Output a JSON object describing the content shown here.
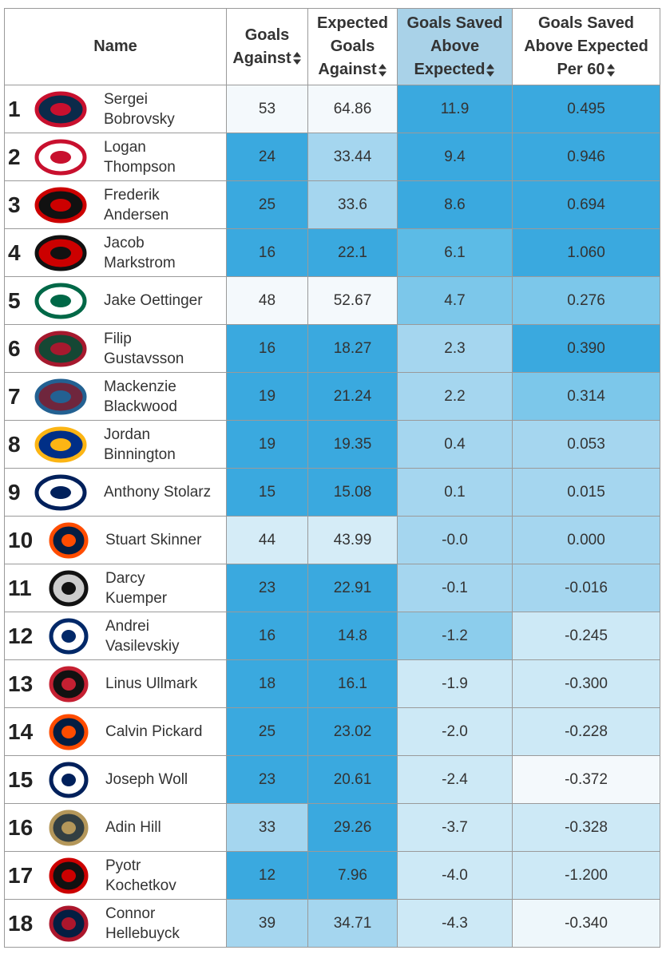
{
  "table": {
    "columns": [
      "Name",
      "Goals Against",
      "Expected Goals Against",
      "Goals Saved Above Expected",
      "Goals Saved Above Expected Per 60"
    ],
    "sorted_column": 3,
    "rows": [
      {
        "rank": "1",
        "name": [
          "Sergei",
          "Bobrovsky"
        ],
        "cells": [
          "53",
          "64.86",
          "11.9",
          "0.495"
        ],
        "colors": [
          "#f4f9fc",
          "#f4f9fc",
          "#3aa9df",
          "#3aa9df"
        ]
      },
      {
        "rank": "2",
        "name": [
          "Logan",
          "Thompson"
        ],
        "cells": [
          "24",
          "33.44",
          "9.4",
          "0.946"
        ],
        "colors": [
          "#3aa9df",
          "#a5d6ef",
          "#3aa9df",
          "#3aa9df"
        ]
      },
      {
        "rank": "3",
        "name": [
          "Frederik",
          "Andersen"
        ],
        "cells": [
          "25",
          "33.6",
          "8.6",
          "0.694"
        ],
        "colors": [
          "#3aa9df",
          "#a5d6ef",
          "#3aa9df",
          "#3aa9df"
        ]
      },
      {
        "rank": "4",
        "name": [
          "Jacob",
          "Markstrom"
        ],
        "cells": [
          "16",
          "22.1",
          "6.1",
          "1.060"
        ],
        "colors": [
          "#3aa9df",
          "#3aa9df",
          "#5cbbe6",
          "#3aa9df"
        ]
      },
      {
        "rank": "5",
        "name": [
          "Jake Oettinger"
        ],
        "cells": [
          "48",
          "52.67",
          "4.7",
          "0.276"
        ],
        "colors": [
          "#f4f9fc",
          "#f4f9fc",
          "#7cc7ea",
          "#7cc7ea"
        ]
      },
      {
        "rank": "6",
        "name": [
          "Filip",
          "Gustavsson"
        ],
        "cells": [
          "16",
          "18.27",
          "2.3",
          "0.390"
        ],
        "colors": [
          "#3aa9df",
          "#3aa9df",
          "#a5d6ef",
          "#3aa9df"
        ]
      },
      {
        "rank": "7",
        "name": [
          "Mackenzie",
          "Blackwood"
        ],
        "cells": [
          "19",
          "21.24",
          "2.2",
          "0.314"
        ],
        "colors": [
          "#3aa9df",
          "#3aa9df",
          "#a5d6ef",
          "#7cc7ea"
        ]
      },
      {
        "rank": "8",
        "name": [
          "Jordan",
          "Binnington"
        ],
        "cells": [
          "19",
          "19.35",
          "0.4",
          "0.053"
        ],
        "colors": [
          "#3aa9df",
          "#3aa9df",
          "#a5d6ef",
          "#a5d6ef"
        ]
      },
      {
        "rank": "9",
        "name": [
          "Anthony Stolarz"
        ],
        "cells": [
          "15",
          "15.08",
          "0.1",
          "0.015"
        ],
        "colors": [
          "#3aa9df",
          "#3aa9df",
          "#a5d6ef",
          "#a5d6ef"
        ]
      },
      {
        "rank": "10",
        "name": [
          "Stuart Skinner"
        ],
        "cells": [
          "44",
          "43.99",
          "-0.0",
          "0.000"
        ],
        "colors": [
          "#d5ecf7",
          "#d5ecf7",
          "#a5d6ef",
          "#a5d6ef"
        ]
      },
      {
        "rank": "11",
        "name": [
          "Darcy",
          "Kuemper"
        ],
        "cells": [
          "23",
          "22.91",
          "-0.1",
          "-0.016"
        ],
        "colors": [
          "#3aa9df",
          "#3aa9df",
          "#a5d6ef",
          "#a5d6ef"
        ]
      },
      {
        "rank": "12",
        "name": [
          "Andrei",
          "Vasilevskiy"
        ],
        "cells": [
          "16",
          "14.8",
          "-1.2",
          "-0.245"
        ],
        "colors": [
          "#3aa9df",
          "#3aa9df",
          "#8ccdec",
          "#cde9f6"
        ]
      },
      {
        "rank": "13",
        "name": [
          "Linus Ullmark"
        ],
        "cells": [
          "18",
          "16.1",
          "-1.9",
          "-0.300"
        ],
        "colors": [
          "#3aa9df",
          "#3aa9df",
          "#cde9f6",
          "#cde9f6"
        ]
      },
      {
        "rank": "14",
        "name": [
          "Calvin Pickard"
        ],
        "cells": [
          "25",
          "23.02",
          "-2.0",
          "-0.228"
        ],
        "colors": [
          "#3aa9df",
          "#3aa9df",
          "#cde9f6",
          "#cde9f6"
        ]
      },
      {
        "rank": "15",
        "name": [
          "Joseph Woll"
        ],
        "cells": [
          "23",
          "20.61",
          "-2.4",
          "-0.372"
        ],
        "colors": [
          "#3aa9df",
          "#3aa9df",
          "#cde9f6",
          "#f4f9fc"
        ]
      },
      {
        "rank": "16",
        "name": [
          "Adin Hill"
        ],
        "cells": [
          "33",
          "29.26",
          "-3.7",
          "-0.328"
        ],
        "colors": [
          "#a5d6ef",
          "#3aa9df",
          "#cde9f6",
          "#cde9f6"
        ]
      },
      {
        "rank": "17",
        "name": [
          "Pyotr",
          "Kochetkov"
        ],
        "cells": [
          "12",
          "7.96",
          "-4.0",
          "-1.200"
        ],
        "colors": [
          "#3aa9df",
          "#3aa9df",
          "#cde9f6",
          "#cde9f6"
        ]
      },
      {
        "rank": "18",
        "name": [
          "Connor",
          "Hellebuyck"
        ],
        "cells": [
          "39",
          "34.71",
          "-4.3",
          "-0.340"
        ],
        "colors": [
          "#a5d6ef",
          "#a5d6ef",
          "#cde9f6",
          "#eef7fb"
        ]
      }
    ]
  }
}
